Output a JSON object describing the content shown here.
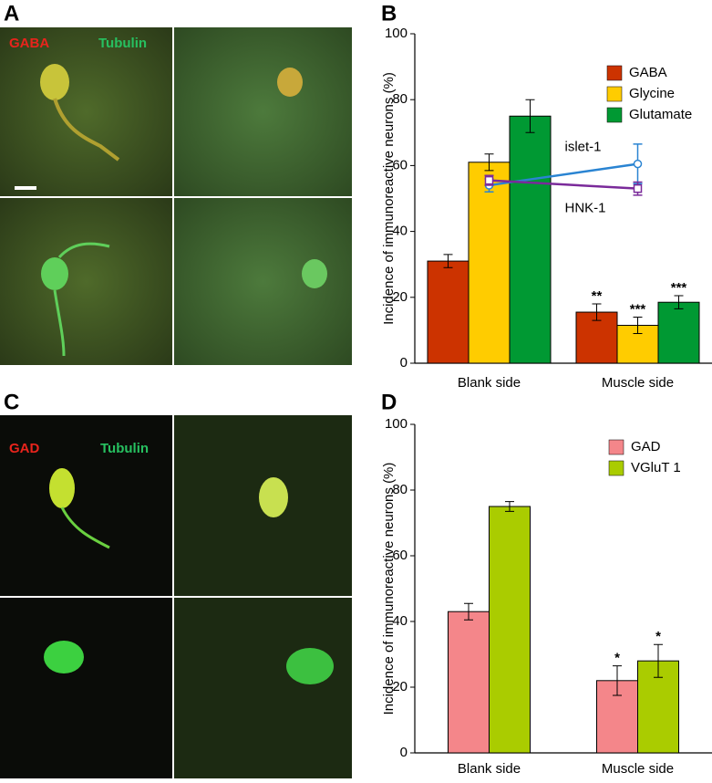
{
  "panels": {
    "a": "A",
    "b": "B",
    "c": "C",
    "d": "D"
  },
  "images": {
    "a_labels": [
      "GABA",
      "Tubulin"
    ],
    "c_labels": [
      "GAD",
      "Tubulin"
    ]
  },
  "chart_data": [
    {
      "type": "bar",
      "y_label": "Incidence of immunoreactive neurons (%)",
      "categories": [
        "Blank side",
        "Muscle side"
      ],
      "series": [
        {
          "name": "GABA",
          "color": "#cc3300",
          "values": [
            31,
            15.5
          ],
          "errors": [
            2,
            2.5
          ],
          "significance": [
            null,
            "**"
          ]
        },
        {
          "name": "Glycine",
          "color": "#ffcc00",
          "values": [
            61,
            11.5
          ],
          "errors": [
            2.5,
            2.5
          ],
          "significance": [
            null,
            "***"
          ]
        },
        {
          "name": "Glutamate",
          "color": "#009933",
          "values": [
            75,
            18.5
          ],
          "errors": [
            5,
            2
          ],
          "significance": [
            null,
            "***"
          ]
        }
      ],
      "lines": [
        {
          "name": "islet-1",
          "color": "#2a84d2",
          "marker": "circle",
          "values": [
            54,
            60.5
          ],
          "errors": [
            2,
            6
          ]
        },
        {
          "name": "HNK-1",
          "color": "#7a2a9a",
          "marker": "square",
          "values": [
            55.5,
            53
          ],
          "errors": [
            1.5,
            2
          ]
        }
      ],
      "ylim": [
        0,
        100
      ],
      "yticks": [
        0,
        20,
        40,
        60,
        80,
        100
      ],
      "legend": "top-right"
    },
    {
      "type": "bar",
      "y_label": "Incidence of immunoreactive neurons (%)",
      "categories": [
        "Blank side",
        "Muscle side"
      ],
      "series": [
        {
          "name": "GAD",
          "color": "#f4868a",
          "values": [
            43,
            22
          ],
          "errors": [
            2.5,
            4.5
          ],
          "significance": [
            null,
            "*"
          ]
        },
        {
          "name": "VGluT 1",
          "color": "#aacc00",
          "values": [
            75,
            28
          ],
          "errors": [
            1.5,
            5
          ],
          "significance": [
            null,
            "*"
          ]
        }
      ],
      "ylim": [
        0,
        100
      ],
      "yticks": [
        0,
        20,
        40,
        60,
        80,
        100
      ],
      "legend": "top-right"
    }
  ]
}
